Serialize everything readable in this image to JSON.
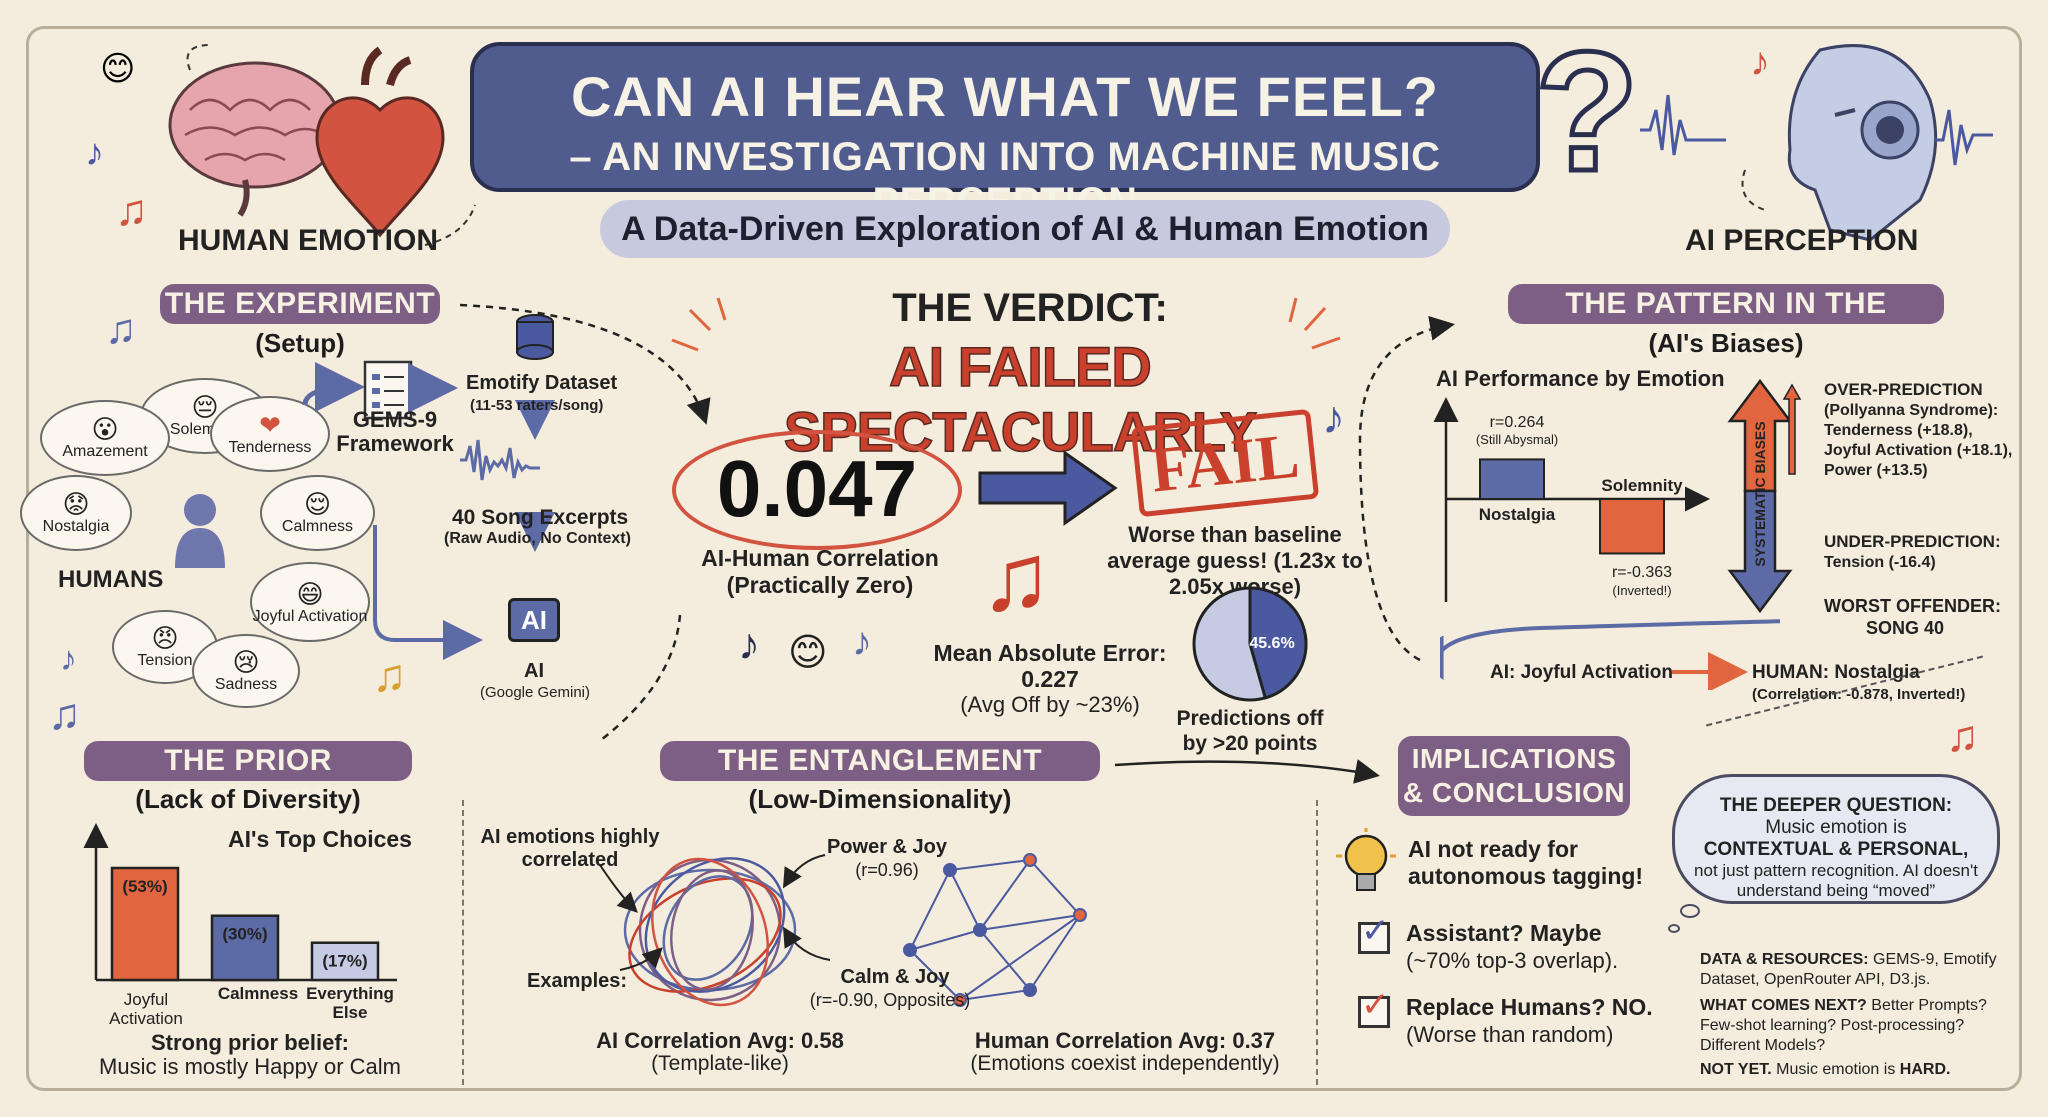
{
  "title": {
    "line1": "CAN AI HEAR WHAT WE FEEL?",
    "line2": "– AN INVESTIGATION INTO MACHINE MUSIC PERCEPTION",
    "subtitle": "A Data-Driven Exploration of AI & Human Emotion"
  },
  "corners": {
    "human_emotion": "HUMAN EMOTION",
    "ai_perception": "AI PERCEPTION"
  },
  "experiment": {
    "header": "THE EXPERIMENT",
    "subheader": "(Setup)",
    "humans_label": "HUMANS",
    "emotions": [
      {
        "label": "Solemnity",
        "icon": "😔"
      },
      {
        "label": "Amazement",
        "icon": "😮"
      },
      {
        "label": "Tenderness",
        "icon": "❤"
      },
      {
        "label": "Nostalgia",
        "icon": "😟"
      },
      {
        "label": "Calmness",
        "icon": "😌"
      },
      {
        "label": "Joyful Activation",
        "icon": "😄"
      },
      {
        "label": "Tension",
        "icon": "😠"
      },
      {
        "label": "Sadness",
        "icon": "😢"
      }
    ],
    "gems_label": "GEMS-9 Framework",
    "dataset_label": "Emotify Dataset",
    "dataset_note": "(11-53 raters/song)",
    "excerpts_label": "40 Song Excerpts",
    "excerpts_note": "(Raw Audio, No Context)",
    "ai_chip": "AI",
    "ai_label": "AI",
    "ai_note": "(Google Gemini)"
  },
  "verdict": {
    "heading": "THE VERDICT:",
    "headline": "AI FAILED SPECTACULARLY",
    "correlation": "0.047",
    "correlation_label": "AI-Human Correlation",
    "correlation_note": "(Practically Zero)",
    "stamp": "FAIL",
    "baseline_text": "Worse than baseline average guess! (1.23x to 2.05x worse)",
    "mae_label": "Mean Absolute Error:",
    "mae_value": "0.227",
    "mae_note": "(Avg Off by ~23%)",
    "pie_value": "45.6%",
    "pie_fraction": 0.456,
    "pie_caption": "Predictions off by >20 points"
  },
  "pattern": {
    "header": "THE PATTERN IN THE CHAOS",
    "subheader": "(AI's Biases)",
    "chart_title": "AI Performance by Emotion",
    "bars": [
      {
        "label": "Nostalgia",
        "value": 0.264,
        "value_label": "r=0.264",
        "note": "(Still Abysmal)"
      },
      {
        "label": "Solemnity",
        "value": -0.363,
        "value_label": "r=-0.363",
        "note": "(Inverted!)"
      }
    ],
    "arrow_label": "SYSTEMATIC BIASES",
    "over_title": "OVER-PREDICTION",
    "over_lines": [
      "(Pollyanna Syndrome):",
      "Tenderness (+18.8),",
      "Joyful Activation (+18.1),",
      "Power (+13.5)"
    ],
    "under_title": "UNDER-PREDICTION:",
    "under_text": "Tension (-16.4)",
    "worst_title": "WORST OFFENDER:",
    "worst_text": "SONG 40",
    "worst_ai": "AI: Joyful Activation",
    "worst_human": "HUMAN: Nostalgia",
    "worst_note": "(Correlation: -0.878, Inverted!)"
  },
  "prior": {
    "header": "THE PRIOR PROBLEM",
    "subheader": "(Lack of Diversity)",
    "chart_title": "AI's Top Choices",
    "summary_title": "Strong prior belief:",
    "summary_text": "Music is mostly Happy or Calm"
  },
  "chart_data": {
    "type": "bar",
    "title": "AI's Top Choices",
    "categories": [
      "Joyful Activation",
      "Calmness",
      "Everything Else"
    ],
    "values": [
      53,
      30,
      17
    ],
    "value_labels": [
      "(53%)",
      "(30%)",
      "(17%)"
    ],
    "colors": [
      "#e1663f",
      "#5c6aa6",
      "#c5cbe2"
    ]
  },
  "entanglement": {
    "header": "THE ENTANGLEMENT EFFECT",
    "subheader": "(Low-Dimensionality)",
    "ai_label": "AI emotions highly correlated",
    "power_joy": "Power & Joy",
    "power_joy_r": "(r=0.96)",
    "examples": "Examples:",
    "calm_joy": "Calm & Joy",
    "calm_joy_r": "(r=-0.90, Opposites)",
    "ai_avg": "AI Correlation Avg: 0.58",
    "ai_avg_note": "(Template-like)",
    "human_avg": "Human Correlation Avg: 0.37",
    "human_avg_note": "(Emotions coexist independently)"
  },
  "implications": {
    "header_line1": "IMPLICATIONS",
    "header_line2": "& CONCLUSION",
    "point1": "AI not ready for autonomous tagging!",
    "point2_title": "Assistant? Maybe",
    "point2_note": "(~70% top-3 overlap).",
    "point3_title": "Replace Humans? NO.",
    "point3_note": "(Worse than random)",
    "deeper_title": "THE DEEPER QUESTION:",
    "deeper_line1": "Music emotion is",
    "deeper_line2": "CONTEXTUAL & PERSONAL,",
    "deeper_line3": "not just pattern recognition. AI doesn't understand being “moved”",
    "resources_label": "DATA & RESOURCES:",
    "resources_text": "GEMS-9, Emotify Dataset, OpenRouter API, D3.js.",
    "next_label": "WHAT COMES NEXT?",
    "next_text": "Better Prompts? Few-shot learning? Post-processing? Different Models?",
    "notyet_label": "NOT YET.",
    "notyet_text": "Music emotion is",
    "notyet_hard": "HARD."
  },
  "colors": {
    "accent_orange": "#e1663f",
    "accent_blue": "#5c6aa6",
    "purple_header": "#7d5f86",
    "banner": "#505b8e",
    "fail_red": "#c9402c"
  }
}
